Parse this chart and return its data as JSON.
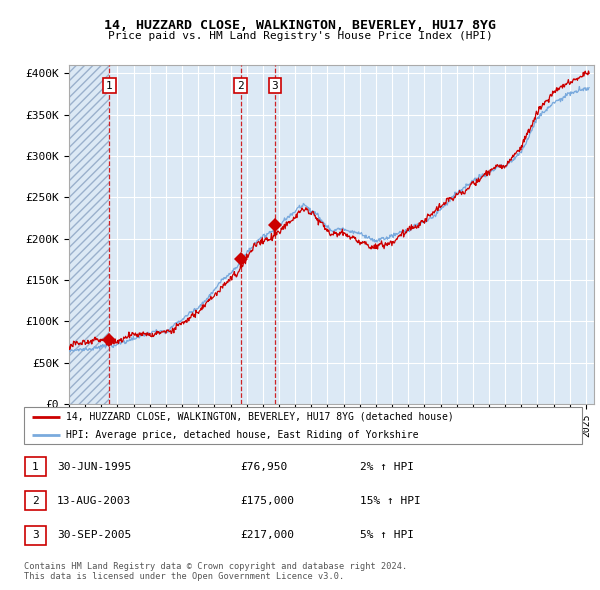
{
  "title": "14, HUZZARD CLOSE, WALKINGTON, BEVERLEY, HU17 8YG",
  "subtitle": "Price paid vs. HM Land Registry's House Price Index (HPI)",
  "background_color": "#dce9f5",
  "plot_bg": "#dce9f5",
  "grid_color": "#ffffff",
  "ylim": [
    0,
    410000
  ],
  "yticks": [
    0,
    50000,
    100000,
    150000,
    200000,
    250000,
    300000,
    350000,
    400000
  ],
  "ytick_labels": [
    "£0",
    "£50K",
    "£100K",
    "£150K",
    "£200K",
    "£250K",
    "£300K",
    "£350K",
    "£400K"
  ],
  "xlim_start": 1993.0,
  "xlim_end": 2025.5,
  "sales": [
    {
      "date_num": 1995.5,
      "price": 76950,
      "label": "1"
    },
    {
      "date_num": 2003.62,
      "price": 175000,
      "label": "2"
    },
    {
      "date_num": 2005.75,
      "price": 217000,
      "label": "3"
    }
  ],
  "sale_color": "#cc0000",
  "hpi_line_color": "#7aaadd",
  "legend_house_label": "14, HUZZARD CLOSE, WALKINGTON, BEVERLEY, HU17 8YG (detached house)",
  "legend_hpi_label": "HPI: Average price, detached house, East Riding of Yorkshire",
  "footnote": "Contains HM Land Registry data © Crown copyright and database right 2024.\nThis data is licensed under the Open Government Licence v3.0.",
  "table_rows": [
    {
      "num": "1",
      "date": "30-JUN-1995",
      "price": "£76,950",
      "change": "2% ↑ HPI"
    },
    {
      "num": "2",
      "date": "13-AUG-2003",
      "price": "£175,000",
      "change": "15% ↑ HPI"
    },
    {
      "num": "3",
      "date": "30-SEP-2005",
      "price": "£217,000",
      "change": "5% ↑ HPI"
    }
  ]
}
